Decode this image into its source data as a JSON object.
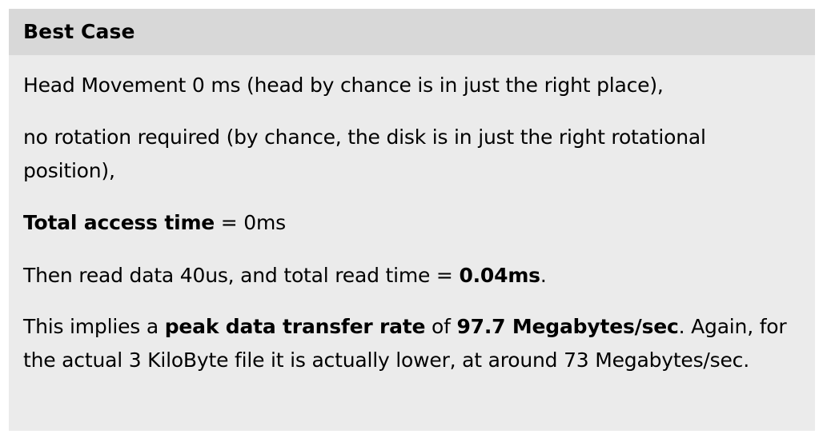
{
  "block": {
    "title": "Best Case",
    "p1": "Head Movement 0 ms (head by chance is in just the right place),",
    "p2": "no rotation required (by chance, the disk is in just the right rotational position),",
    "p3": {
      "bold": "Total access time",
      "rest": " = 0ms"
    },
    "p4": {
      "pre": "Then read data 40us, and total read time = ",
      "bold": "0.04ms",
      "post": "."
    },
    "p5": {
      "pre": "This implies a ",
      "bold1": "peak data transfer rate",
      "mid": " of ",
      "bold2": "97.7 Megabytes/sec",
      "post": ". Again, for the actual 3 KiloByte file it is actually lower, at around 73 Megabytes/sec."
    }
  }
}
